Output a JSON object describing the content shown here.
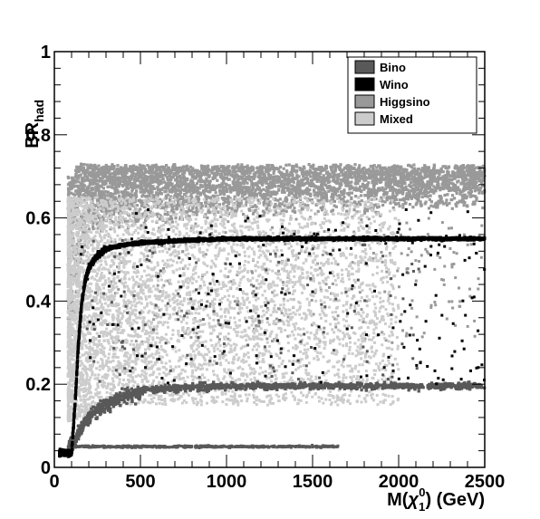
{
  "chart_data": {
    "type": "scatter",
    "xlabel": "M(χ₁⁰) (GeV)",
    "ylabel": "BR_had",
    "xlim": [
      0,
      2500
    ],
    "ylim": [
      0,
      1
    ],
    "x_ticks": [
      0,
      500,
      1000,
      1500,
      2000,
      2500
    ],
    "y_ticks": [
      0,
      0.2,
      0.4,
      0.6,
      0.8,
      1
    ],
    "x_tick_labels": [
      "0",
      "500",
      "1000",
      "1500",
      "2000",
      "2500"
    ],
    "y_tick_labels": [
      "0",
      "0.2",
      "0.4",
      "0.6",
      "0.8",
      "1"
    ],
    "legend_position": "top-right",
    "series": [
      {
        "name": "Bino",
        "color": "#595959",
        "bands": [
          {
            "x": [
              50,
              100,
              150,
              200,
              300,
              400,
              500,
              700,
              1000,
              1500,
              2000,
              2500
            ],
            "y": [
              0.04,
              0.06,
              0.1,
              0.13,
              0.16,
              0.18,
              0.19,
              0.195,
              0.2,
              0.2,
              0.2,
              0.2
            ]
          },
          {
            "x": [
              100,
              150,
              200,
              300,
              500,
              1000,
              1500,
              1650
            ],
            "y": [
              0.05,
              0.05,
              0.05,
              0.05,
              0.05,
              0.05,
              0.05,
              0.05
            ]
          }
        ]
      },
      {
        "name": "Wino",
        "color": "#000000",
        "curve": {
          "x": [
            50,
            100,
            120,
            140,
            160,
            180,
            200,
            250,
            300,
            400,
            500,
            700,
            1000,
            1500,
            2000,
            2500
          ],
          "y": [
            0.035,
            0.035,
            0.15,
            0.3,
            0.4,
            0.45,
            0.48,
            0.51,
            0.525,
            0.535,
            0.54,
            0.545,
            0.55,
            0.55,
            0.55,
            0.55
          ]
        }
      },
      {
        "name": "Higgsino",
        "color": "#999999",
        "region": {
          "x_min": 80,
          "x_max": 2500,
          "y_min": 0.55,
          "y_max": 0.73
        }
      },
      {
        "name": "Mixed",
        "color": "#cccccc",
        "region": {
          "x_min": 80,
          "x_max": 2000,
          "y_min": 0.1,
          "y_max": 0.65
        }
      }
    ]
  }
}
